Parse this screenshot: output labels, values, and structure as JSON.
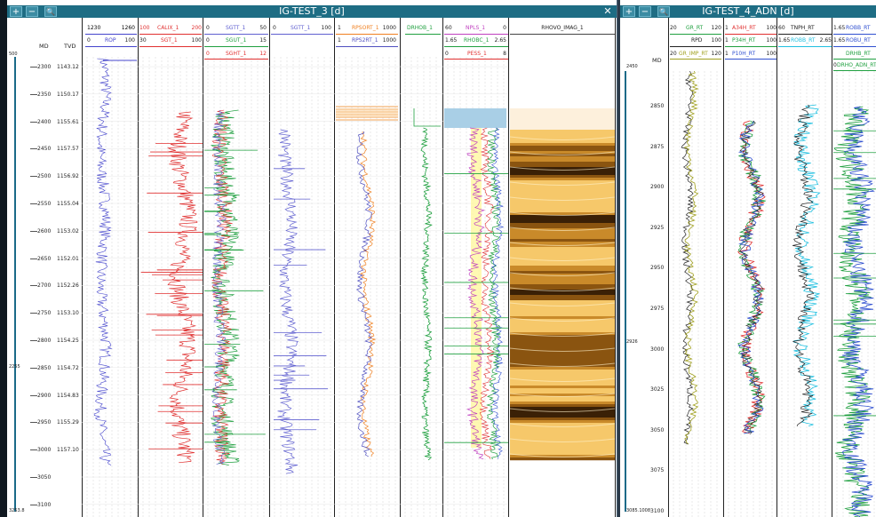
{
  "windows": [
    {
      "title": "IG-TEST_3 [d]",
      "buttons": {
        "add": "+",
        "minus": "−",
        "search": "🔍",
        "close": "✕"
      },
      "md_label": "MD",
      "tvd_label": "TVD",
      "scale_top": "500",
      "scale_mid": "2255",
      "scale_bot": "3253.8",
      "md_values": [
        "2300",
        "2350",
        "2400",
        "2450",
        "2500",
        "2550",
        "2600",
        "2650",
        "2700",
        "2750",
        "2800",
        "2850",
        "2900",
        "2950",
        "3000",
        "3050",
        "3100"
      ],
      "tvd_values": [
        "1143.12",
        "1150.17",
        "1155.61",
        "1157.57",
        "1156.92",
        "1155.04",
        "1153.02",
        "1152.01",
        "1152.26",
        "1153.10",
        "1154.25",
        "1154.72",
        "1154.83",
        "1155.29",
        "1157.10"
      ],
      "tracks": [
        {
          "name": "ROP",
          "min": "1230",
          "max": "1260",
          "min2": "0",
          "max2": "100",
          "color": "#4444cc"
        },
        {
          "name": "CALIX_1",
          "min": "100",
          "max": "200",
          "color": "#e03030"
        },
        {
          "name": "SGT_1",
          "min": "30",
          "max": "100",
          "color": "#e03030"
        },
        {
          "name": "SGTT_1",
          "min": "0",
          "max": "50",
          "color": "#6060d0"
        },
        {
          "name": "SGUT_1",
          "min": "0",
          "max": "15",
          "color": "#20a040"
        },
        {
          "name": "SGHT_1",
          "min": "0",
          "max": "12",
          "color": "#e03030"
        },
        {
          "name": "SGTT_1",
          "min": "0",
          "max": "100",
          "color": "#6060d0"
        },
        {
          "name": "RPSORT_1",
          "min": "1",
          "max": "1000",
          "color": "#f08020"
        },
        {
          "name": "RPS2RT_1",
          "min": "1",
          "max": "1000",
          "color": "#5050c0"
        },
        {
          "name": "DRHOB_1",
          "min": "",
          "max": "",
          "color": "#20a040"
        },
        {
          "name": "NPLS_1",
          "min": "60",
          "max": "0",
          "color": "#c040c0"
        },
        {
          "name": "RHOBC_1",
          "min": "1.65",
          "max": "2.65",
          "color": "#20a040"
        },
        {
          "name": "PESS_1",
          "min": "0",
          "max": "8",
          "color": "#e03030"
        },
        {
          "name": "RHOVO_IMAG_1",
          "min": "",
          "max": "",
          "color": "#222222"
        }
      ]
    },
    {
      "title": "IG-TEST_4_ADN [d]",
      "buttons": {
        "add": "+",
        "minus": "−",
        "search": "🔍"
      },
      "md_label": "MD",
      "scale_top": "2450",
      "scale_mid": "2926",
      "scale_bot": "3085.1008",
      "md_values": [
        "2850",
        "2875",
        "2900",
        "2925",
        "2950",
        "2975",
        "3000",
        "3025",
        "3050",
        "3075",
        "3100"
      ],
      "tracks": [
        {
          "name": "GR_RT",
          "min": "20",
          "max": "120",
          "color": "#20a040"
        },
        {
          "name": "RPD",
          "min": "",
          "max": "100",
          "color": "#222222"
        },
        {
          "name": "GR_IMP_RT",
          "min": "20",
          "max": "120",
          "color": "#a0a020"
        },
        {
          "name": "A34H_RT",
          "min": "1",
          "max": "100",
          "color": "#e03030"
        },
        {
          "name": "P34H_RT",
          "min": "1",
          "max": "100",
          "color": "#20a040"
        },
        {
          "name": "P10H_RT",
          "min": "1",
          "max": "100",
          "color": "#3050d0"
        },
        {
          "name": "TNPH_RT",
          "min": "60",
          "max": "",
          "color": "#222222"
        },
        {
          "name": "ROBB_RT",
          "min": "1.65",
          "max": "2.65",
          "color": "#20c0e0"
        },
        {
          "name": "ROBB_RT",
          "min": "1.65",
          "max": "2.65",
          "color": "#20c0e0"
        },
        {
          "name": "ROBB_RT",
          "min": "1.65",
          "max": "",
          "color": "#3050d0"
        },
        {
          "name": "ROBU_RT",
          "min": "1.65",
          "max": "",
          "color": "#3050d0"
        },
        {
          "name": "DRHB_RT",
          "min": "",
          "max": "",
          "color": "#20a040"
        },
        {
          "name": "DRHO_ADN_RT",
          "min": "0",
          "max": "",
          "color": "#20a040"
        }
      ]
    }
  ]
}
